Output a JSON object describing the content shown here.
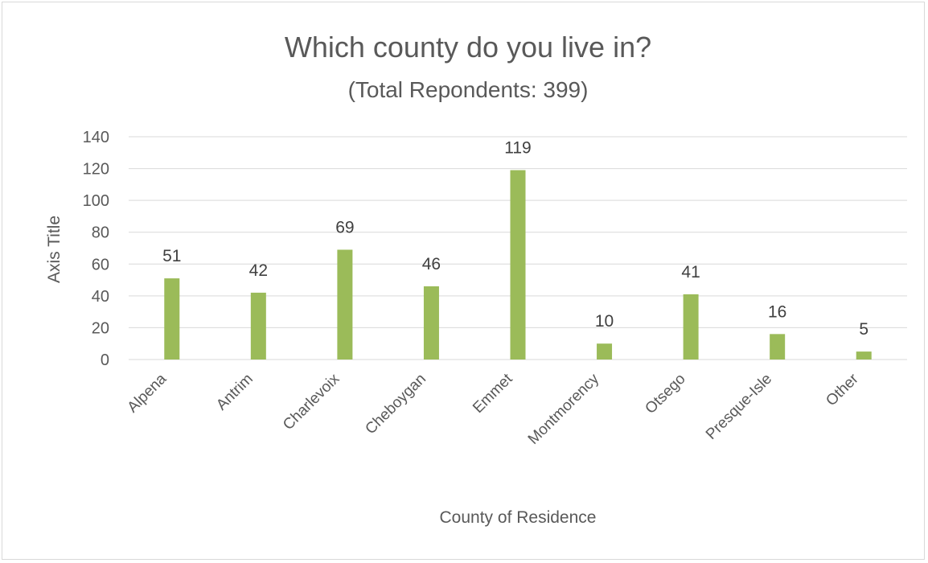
{
  "chart_data": {
    "type": "bar",
    "title": "Which county do you live in?",
    "subtitle": "(Total Repondents: 399)",
    "xlabel": "County of Residence",
    "ylabel": "Axis Title",
    "categories": [
      "Alpena",
      "Antrim",
      "Charlevoix",
      "Cheboygan",
      "Emmet",
      "Montmorency",
      "Otsego",
      "Presque-Isle",
      "Other"
    ],
    "values": [
      51,
      42,
      69,
      46,
      119,
      10,
      41,
      16,
      5
    ],
    "ylim": [
      0,
      140
    ],
    "yticks": [
      0,
      20,
      40,
      60,
      80,
      100,
      120,
      140
    ],
    "grid": true,
    "legend": "none",
    "bar_color": "#9bbb59"
  }
}
